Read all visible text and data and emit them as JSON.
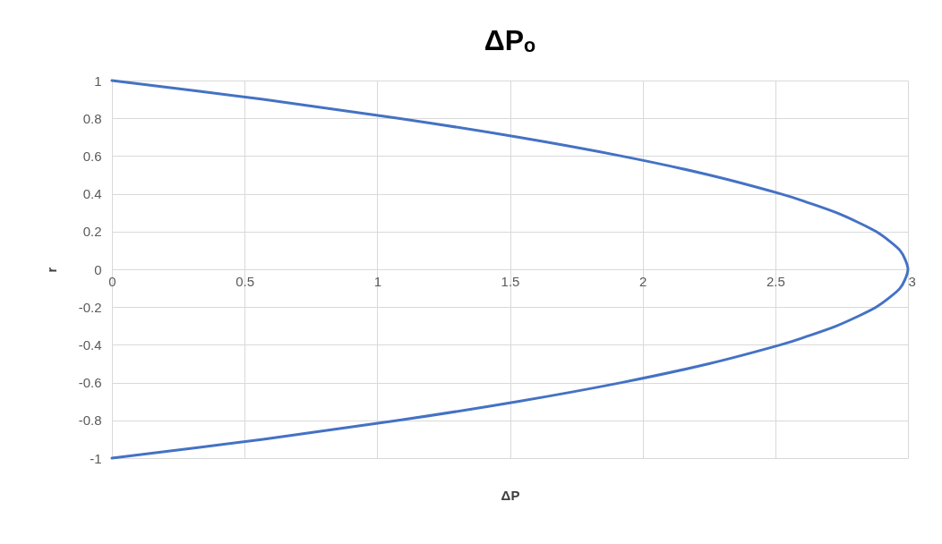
{
  "chart_data": {
    "type": "line",
    "title": "ΔPₒ",
    "xlabel": "ΔP",
    "ylabel": "r",
    "x": [
      0,
      0.57,
      1.08,
      1.53,
      1.92,
      2.25,
      2.52,
      2.63,
      2.73,
      2.81,
      2.88,
      2.93,
      2.97,
      2.99,
      3,
      2.99,
      2.97,
      2.93,
      2.88,
      2.81,
      2.73,
      2.63,
      2.52,
      2.25,
      1.92,
      1.53,
      1.08,
      0.57,
      0
    ],
    "series": [
      {
        "color": "#4472c4",
        "values": [
          1,
          0.9,
          0.8,
          0.7,
          0.6,
          0.5,
          0.4,
          0.35,
          0.3,
          0.25,
          0.2,
          0.15,
          0.1,
          0.05,
          0,
          -0.05,
          -0.1,
          -0.15,
          -0.2,
          -0.25,
          -0.3,
          -0.35,
          -0.4,
          -0.5,
          -0.6,
          -0.7,
          -0.8,
          -0.9,
          -1
        ]
      }
    ],
    "xlim": [
      0,
      3
    ],
    "xticks": [
      0,
      0.5,
      1,
      1.5,
      2,
      2.5,
      3
    ],
    "ylim": [
      -1,
      1
    ],
    "yticks": [
      -1,
      -0.8,
      -0.6,
      -0.4,
      -0.2,
      0,
      0.2,
      0.4,
      0.6,
      0.8,
      1
    ],
    "grid": true,
    "marker": "none",
    "line_style": "solid"
  }
}
